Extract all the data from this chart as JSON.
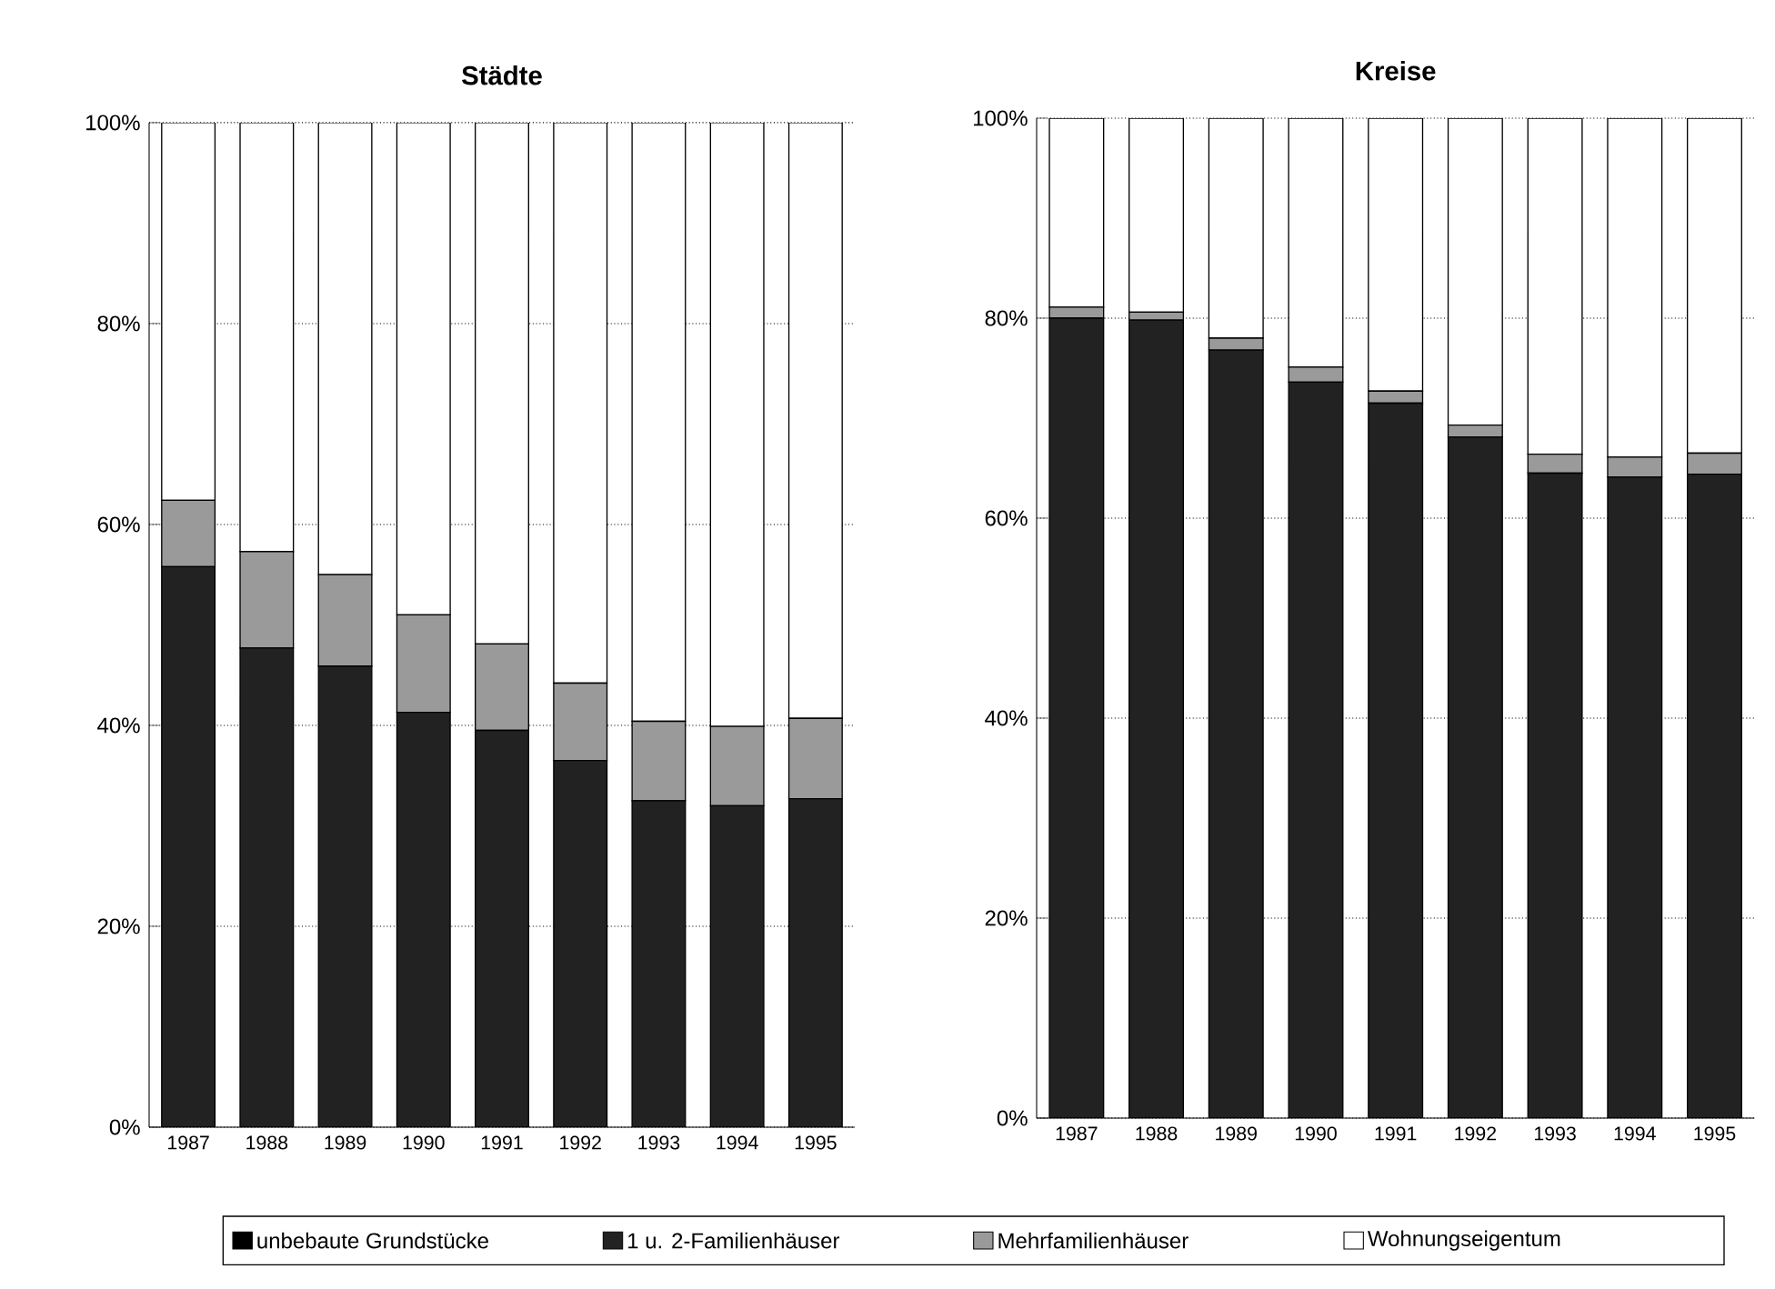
{
  "chart_data": [
    {
      "type": "bar",
      "title": "Städte",
      "stacked": true,
      "grid": "y",
      "legend": "bottom",
      "categories": [
        "1987",
        "1988",
        "1989",
        "1990",
        "1991",
        "1992",
        "1993",
        "1994",
        "1995"
      ],
      "ylim": [
        0,
        100
      ],
      "yticks": [
        {
          "value": 0,
          "label": "0%"
        },
        {
          "value": 20,
          "label": "20%"
        },
        {
          "value": 40,
          "label": "40%"
        },
        {
          "value": 60,
          "label": "60%"
        },
        {
          "value": 80,
          "label": "80%"
        },
        {
          "value": 100,
          "label": "100%"
        }
      ],
      "series": [
        {
          "name": "unbebaute Grundstücke",
          "color": "#000000",
          "values": [
            null,
            null,
            null,
            null,
            null,
            null,
            null,
            null,
            null
          ]
        },
        {
          "name": "1 u. 2-Familienhäuser",
          "color": "#222222",
          "values": [
            55.8,
            47.7,
            45.9,
            41.3,
            39.5,
            36.5,
            32.5,
            32.0,
            32.7
          ]
        },
        {
          "name": "Mehrfamilienhäuser",
          "color": "#9a9a9a",
          "values": [
            6.6,
            9.6,
            9.1,
            9.7,
            8.6,
            7.7,
            7.9,
            7.9,
            8.0
          ]
        },
        {
          "name": "Wohnungseigentum",
          "color": "#ffffff",
          "values": [
            37.6,
            42.7,
            45.0,
            49.0,
            51.9,
            55.8,
            59.6,
            60.1,
            59.3
          ]
        }
      ]
    },
    {
      "type": "bar",
      "title": "Kreise",
      "stacked": true,
      "grid": "y",
      "categories": [
        "1987",
        "1988",
        "1989",
        "1990",
        "1991",
        "1992",
        "1993",
        "1994",
        "1995"
      ],
      "ylim": [
        0,
        100
      ],
      "yticks": [
        {
          "value": 0,
          "label": "0%"
        },
        {
          "value": 20,
          "label": "20%"
        },
        {
          "value": 40,
          "label": "40%"
        },
        {
          "value": 60,
          "label": "60%"
        },
        {
          "value": 80,
          "label": "80%"
        },
        {
          "value": 100,
          "label": "100%"
        }
      ],
      "series": [
        {
          "color": "#000000",
          "values": [
            null,
            null,
            null,
            null,
            null,
            null,
            null,
            null,
            null
          ]
        },
        {
          "color": "#222222",
          "values": [
            80.0,
            79.8,
            76.8,
            73.6,
            71.5,
            68.1,
            64.5,
            64.1,
            64.4
          ]
        },
        {
          "color": "#9a9a9a",
          "values": [
            1.1,
            0.8,
            1.2,
            1.5,
            1.2,
            1.2,
            1.9,
            2.0,
            2.1
          ]
        },
        {
          "color": "#ffffff",
          "values": [
            18.9,
            19.4,
            22.0,
            24.9,
            27.3,
            30.7,
            33.6,
            33.9,
            33.5
          ]
        }
      ]
    }
  ]
}
